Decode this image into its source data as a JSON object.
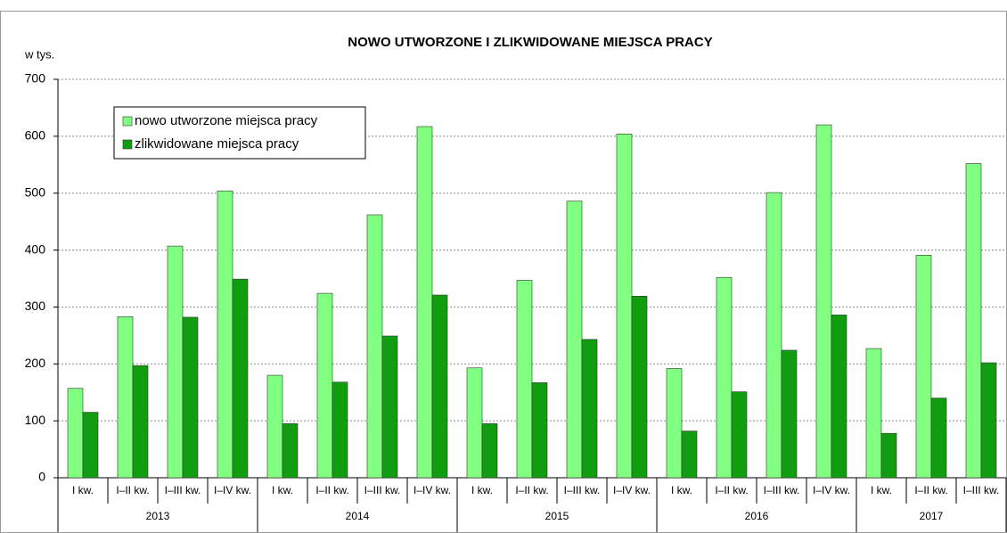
{
  "chart_data": {
    "type": "bar",
    "title": "NOWO UTWORZONE I ZLIKWIDOWANE MIEJSCA PRACY",
    "y_label": "w tys.",
    "categories": [
      "I kw.",
      "I–II kw.",
      "I–III kw.",
      "I–IV kw.",
      "I kw.",
      "I–II kw.",
      "I–III kw.",
      "I–IV kw.",
      "I kw.",
      "I–II kw.",
      "I–III kw.",
      "I–IV kw.",
      "I kw.",
      "I–II kw.",
      "I–III kw.",
      "I–IV kw.",
      "I kw.",
      "I–II kw.",
      "I–III kw."
    ],
    "groups": [
      {
        "label": "2013",
        "size": 4
      },
      {
        "label": "2014",
        "size": 4
      },
      {
        "label": "2015",
        "size": 4
      },
      {
        "label": "2016",
        "size": 4
      },
      {
        "label": "2017",
        "size": 3
      }
    ],
    "series": [
      {
        "name": "nowo utworzone miejsca pracy",
        "color": "#80ff80",
        "values": [
          157,
          283,
          407,
          504,
          180,
          324,
          462,
          617,
          193,
          347,
          486,
          604,
          192,
          352,
          501,
          620,
          227,
          391,
          552
        ]
      },
      {
        "name": "zlikwidowane miejsca pracy",
        "color": "#109e10",
        "values": [
          115,
          197,
          282,
          349,
          95,
          168,
          249,
          321,
          95,
          167,
          243,
          319,
          82,
          151,
          224,
          286,
          78,
          140,
          202
        ]
      }
    ],
    "ylim": [
      0,
      700
    ],
    "yticks": [
      0,
      100,
      200,
      300,
      400,
      500,
      600,
      700
    ],
    "grid": true,
    "legend": "top-left"
  }
}
